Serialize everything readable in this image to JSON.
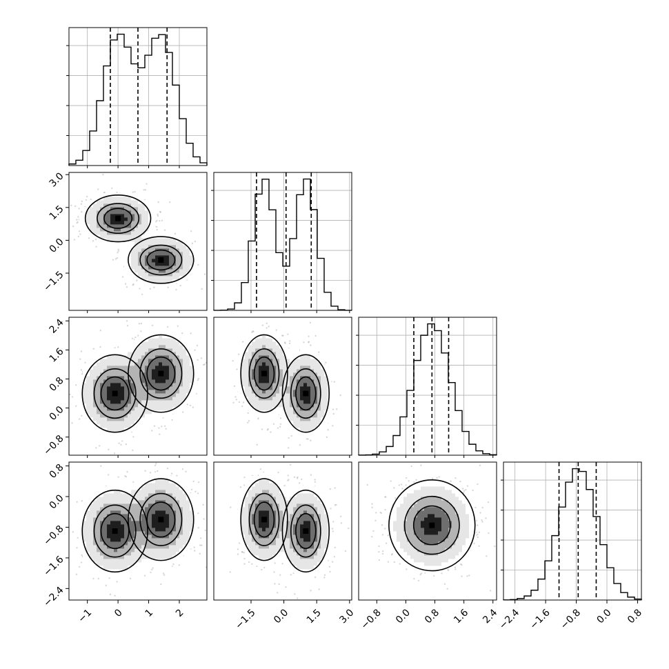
{
  "chart_data": {
    "type": "corner",
    "colors": {
      "line": "#000000",
      "grid": "#b0b0b0",
      "scatter": "#8c8c8c",
      "fill_light": "#e6e6e6",
      "fill_mid": "#b4b4b4",
      "fill_dark": "#6e6e6e"
    },
    "params": [
      {
        "range": [
          -1.6,
          2.9
        ],
        "ticks": [
          -1,
          0,
          1,
          2
        ],
        "tick_labels": [
          "−1",
          "0",
          "1",
          "2"
        ],
        "quantiles": [
          -0.25,
          0.65,
          1.6
        ],
        "modes": [
          {
            "mean": 0.0,
            "sd": 0.5,
            "weight": 0.5
          },
          {
            "mean": 1.4,
            "sd": 0.5,
            "weight": 0.5
          }
        ]
      },
      {
        "range": [
          -3.2,
          3.1
        ],
        "ticks": [
          -1.5,
          0.0,
          1.5,
          3.0
        ],
        "tick_labels": [
          "−1.5",
          "0.0",
          "1.5",
          "3.0"
        ],
        "quantiles": [
          -1.25,
          0.1,
          1.25
        ],
        "modes": [
          {
            "mean": -0.9,
            "sd": 0.5,
            "weight": 0.5
          },
          {
            "mean": 1.0,
            "sd": 0.5,
            "weight": 0.5
          }
        ]
      },
      {
        "range": [
          -1.3,
          2.5
        ],
        "ticks": [
          -0.8,
          0.0,
          0.8,
          1.6,
          2.4
        ],
        "tick_labels": [
          "−0.8",
          "0.0",
          "0.8",
          "1.6",
          "2.4"
        ],
        "quantiles": [
          0.22,
          0.72,
          1.18
        ],
        "modes": [
          {
            "mean": 0.72,
            "sd": 0.5,
            "weight": 1.0
          }
        ]
      },
      {
        "range": [
          -2.7,
          0.9
        ],
        "ticks": [
          -2.4,
          -1.6,
          -0.8,
          0.0,
          0.8
        ],
        "tick_labels": [
          "−2.4",
          "−1.6",
          "−0.8",
          "0.0",
          "0.8"
        ],
        "quantiles": [
          -1.25,
          -0.75,
          -0.28
        ],
        "modes": [
          {
            "mean": -0.75,
            "sd": 0.5,
            "weight": 1.0
          }
        ]
      }
    ],
    "joint_modes": {
      "1_0": [
        {
          "x": 0.0,
          "y": 1.0,
          "w": 0.5
        },
        {
          "x": 1.4,
          "y": -0.9,
          "w": 0.5
        }
      ],
      "2_0": [
        {
          "x": -0.1,
          "y": 0.4,
          "w": 0.5
        },
        {
          "x": 1.4,
          "y": 0.95,
          "w": 0.5
        }
      ],
      "3_0": [
        {
          "x": -0.1,
          "y": -0.9,
          "w": 0.5
        },
        {
          "x": 1.4,
          "y": -0.6,
          "w": 0.5
        }
      ],
      "2_1": [
        {
          "x": -0.9,
          "y": 0.95,
          "w": 0.5
        },
        {
          "x": 1.0,
          "y": 0.4,
          "w": 0.5
        }
      ],
      "3_1": [
        {
          "x": -0.9,
          "y": -0.6,
          "w": 0.5
        },
        {
          "x": 1.0,
          "y": -0.9,
          "w": 0.5
        }
      ],
      "3_2": [
        {
          "x": 0.72,
          "y": -0.75,
          "w": 1.0
        }
      ]
    },
    "joint_sd": 0.5,
    "grid": true
  }
}
